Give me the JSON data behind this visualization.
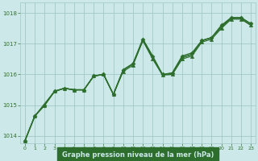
{
  "title": "Graphe pression niveau de la mer (hPa)",
  "background_color": "#cce8e8",
  "label_bg_color": "#2d6e2d",
  "label_fg_color": "#cce8e8",
  "grid_color": "#a0c8c8",
  "line_color": "#2d6e2d",
  "marker_color": "#2d6e2d",
  "xlim": [
    -0.5,
    23.5
  ],
  "ylim": [
    1013.75,
    1018.35
  ],
  "yticks": [
    1014,
    1015,
    1016,
    1017,
    1018
  ],
  "xticks": [
    0,
    1,
    2,
    3,
    4,
    5,
    6,
    7,
    8,
    9,
    10,
    11,
    12,
    13,
    14,
    15,
    16,
    17,
    18,
    19,
    20,
    21,
    22,
    23
  ],
  "lines": [
    {
      "x": [
        0,
        1,
        2,
        3,
        4,
        5,
        6,
        7,
        8,
        9,
        10,
        11,
        12,
        13,
        14,
        15,
        16,
        17,
        18,
        19,
        20,
        21,
        22,
        23
      ],
      "y": [
        1013.85,
        1014.65,
        1015.0,
        1015.45,
        1015.55,
        1015.5,
        1015.5,
        1015.95,
        1016.0,
        1015.35,
        1016.15,
        1016.35,
        1017.15,
        1016.6,
        1016.0,
        1016.05,
        1016.6,
        1016.7,
        1017.1,
        1017.2,
        1017.6,
        1017.85,
        1017.85,
        1017.65
      ],
      "marker": "D",
      "markersize": 2.5,
      "linewidth": 1.0
    },
    {
      "x": [
        0,
        1,
        2,
        3,
        4,
        5,
        6,
        7,
        8,
        9,
        10,
        11,
        12,
        13,
        14,
        15,
        16,
        17,
        18,
        19,
        20,
        21,
        22,
        23
      ],
      "y": [
        1013.85,
        1014.65,
        1015.0,
        1015.45,
        1015.55,
        1015.5,
        1015.5,
        1015.95,
        1016.0,
        1015.35,
        1016.15,
        1016.35,
        1017.15,
        1016.55,
        1015.98,
        1016.05,
        1016.55,
        1016.65,
        1017.1,
        1017.2,
        1017.55,
        1017.85,
        1017.85,
        1017.65
      ],
      "marker": null,
      "linewidth": 0.9
    },
    {
      "x": [
        0,
        1,
        3,
        4,
        5,
        6,
        7,
        8,
        9,
        10,
        11,
        12,
        13,
        14,
        15,
        16,
        17,
        18,
        19,
        20,
        21,
        22,
        23
      ],
      "y": [
        1013.85,
        1014.65,
        1015.45,
        1015.55,
        1015.5,
        1015.5,
        1015.95,
        1016.0,
        1015.35,
        1016.15,
        1016.35,
        1017.1,
        1016.55,
        1016.0,
        1016.0,
        1016.55,
        1016.65,
        1017.1,
        1017.2,
        1017.55,
        1017.82,
        1017.82,
        1017.6
      ],
      "marker": null,
      "linewidth": 0.9
    },
    {
      "x": [
        0,
        1,
        2,
        3,
        4,
        5,
        6,
        7,
        8,
        9,
        10,
        11,
        12,
        13,
        14,
        15,
        16,
        17,
        18,
        19,
        20,
        21,
        22,
        23
      ],
      "y": [
        1013.85,
        1014.65,
        1015.0,
        1015.45,
        1015.55,
        1015.5,
        1015.5,
        1015.95,
        1016.0,
        1015.35,
        1016.1,
        1016.3,
        1017.1,
        1016.5,
        1015.98,
        1016.0,
        1016.5,
        1016.6,
        1017.05,
        1017.15,
        1017.5,
        1017.8,
        1017.8,
        1017.6
      ],
      "marker": "^",
      "markersize": 3.0,
      "linewidth": 0.9
    }
  ]
}
